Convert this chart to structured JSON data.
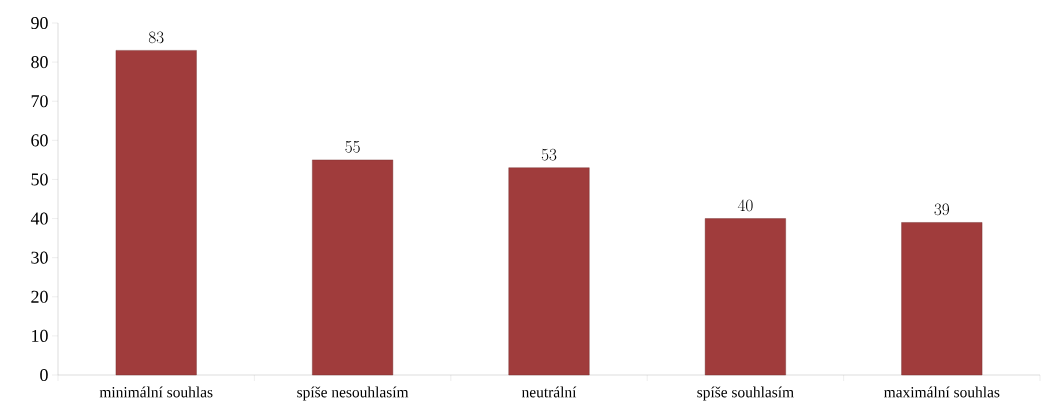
{
  "chart_data": {
    "type": "bar",
    "categories": [
      "minimální souhlas",
      "spíše nesouhlasím",
      "neutrální",
      "spíše souhlasím",
      "maximální souhlas"
    ],
    "values": [
      83,
      55,
      53,
      40,
      39
    ],
    "color": "#a03c3c",
    "data_labels": true,
    "ylim": [
      0,
      90
    ],
    "yticks": [
      0,
      10,
      20,
      30,
      40,
      50,
      60,
      70,
      80,
      90
    ]
  }
}
